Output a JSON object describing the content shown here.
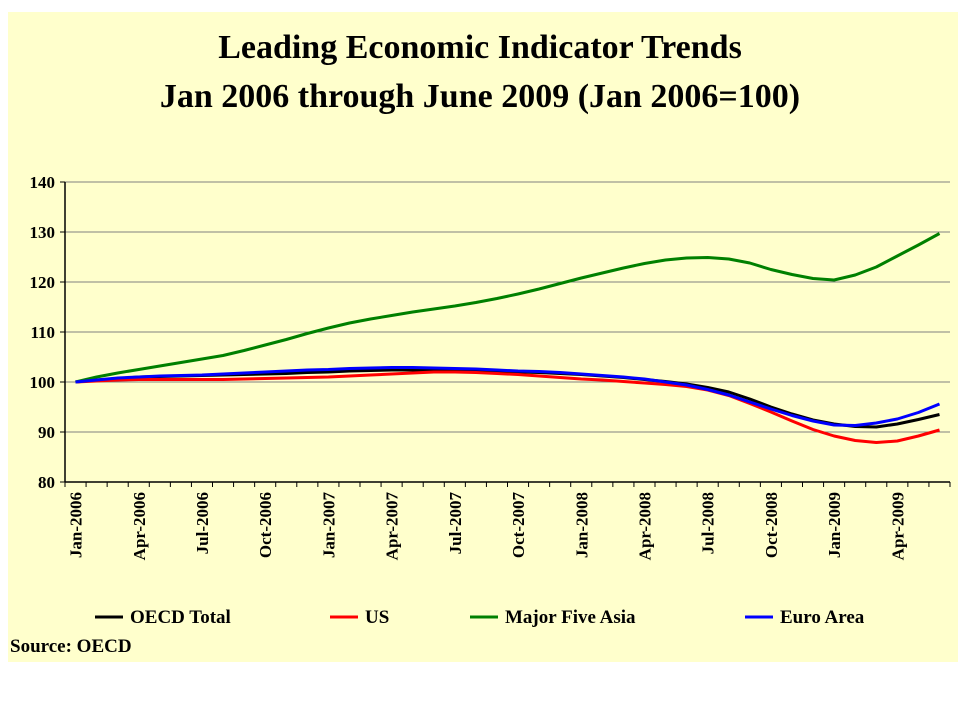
{
  "chart_data": {
    "type": "line",
    "title": "Leading Economic Indicator Trends",
    "subtitle": "Jan 2006 through June 2009 (Jan 2006=100)",
    "source": "Source: OECD",
    "categories": [
      "Jan-2006",
      null,
      null,
      "Apr-2006",
      null,
      null,
      "Jul-2006",
      null,
      null,
      "Oct-2006",
      null,
      null,
      "Jan-2007",
      null,
      null,
      "Apr-2007",
      null,
      null,
      "Jul-2007",
      null,
      null,
      "Oct-2007",
      null,
      null,
      "Jan-2008",
      null,
      null,
      "Apr-2008",
      null,
      null,
      "Jul-2008",
      null,
      null,
      "Oct-2008",
      null,
      null,
      "Jan-2009",
      null,
      null,
      "Apr-2009",
      null,
      null
    ],
    "series": [
      {
        "name": "OECD Total",
        "color": "#000000",
        "values": [
          100,
          100.4,
          100.7,
          101,
          101.1,
          101.2,
          101.3,
          101.4,
          101.5,
          101.6,
          101.7,
          101.9,
          102,
          102.2,
          102.3,
          102.4,
          102.4,
          102.4,
          102.3,
          102.2,
          102.1,
          102,
          101.9,
          101.7,
          101.5,
          101.2,
          100.9,
          100.5,
          100.1,
          99.6,
          98.9,
          98,
          96.6,
          95,
          93.6,
          92.4,
          91.6,
          91.1,
          91,
          91.6,
          92.5,
          93.5
        ]
      },
      {
        "name": "US",
        "color": "#ff0000",
        "values": [
          100,
          100.2,
          100.4,
          100.5,
          100.5,
          100.5,
          100.5,
          100.5,
          100.6,
          100.7,
          100.8,
          100.9,
          101,
          101.2,
          101.4,
          101.6,
          101.8,
          102,
          102,
          101.9,
          101.7,
          101.5,
          101.2,
          100.9,
          100.6,
          100.4,
          100.1,
          99.8,
          99.5,
          99.1,
          98.4,
          97.3,
          95.7,
          94,
          92.2,
          90.5,
          89.2,
          88.3,
          87.9,
          88.2,
          89.2,
          90.4
        ]
      },
      {
        "name": "Major Five Asia",
        "color": "#008000",
        "values": [
          100,
          101,
          101.8,
          102.5,
          103.2,
          103.9,
          104.6,
          105.3,
          106.3,
          107.4,
          108.5,
          109.7,
          110.8,
          111.8,
          112.6,
          113.3,
          114,
          114.6,
          115.2,
          115.9,
          116.7,
          117.6,
          118.6,
          119.7,
          120.8,
          121.8,
          122.8,
          123.7,
          124.4,
          124.8,
          124.9,
          124.6,
          123.8,
          122.5,
          121.5,
          120.7,
          120.4,
          121.4,
          123,
          125.2,
          127.4,
          129.7
        ]
      },
      {
        "name": "Euro Area",
        "color": "#0000ff",
        "values": [
          100,
          100.4,
          100.8,
          101,
          101.2,
          101.3,
          101.4,
          101.6,
          101.8,
          102,
          102.2,
          102.4,
          102.5,
          102.7,
          102.8,
          102.9,
          102.9,
          102.8,
          102.7,
          102.6,
          102.4,
          102.2,
          102.1,
          101.9,
          101.6,
          101.3,
          101,
          100.6,
          100,
          99.4,
          98.5,
          97.4,
          96,
          94.6,
          93.3,
          92.2,
          91.4,
          91.3,
          91.8,
          92.6,
          93.9,
          95.6
        ]
      }
    ],
    "ylim": [
      80,
      140
    ],
    "yticks": [
      80,
      90,
      100,
      110,
      120,
      130,
      140
    ],
    "grid": true,
    "legend": "bottom"
  }
}
